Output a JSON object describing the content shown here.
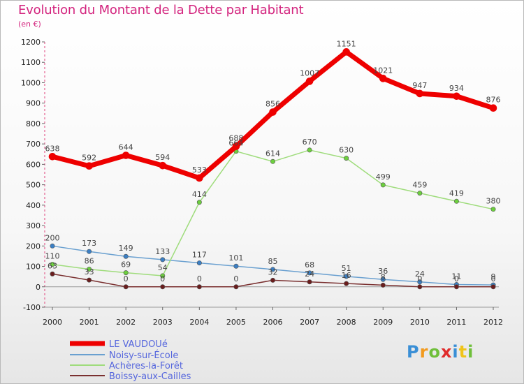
{
  "title": "Evolution du Montant de la Dette par Habitant",
  "unit": "(en €)",
  "logo": {
    "text": "Proxiti",
    "colors": [
      "#3a8fd6",
      "#f29a1e",
      "#6fbf3a",
      "#e02b2b",
      "#3a8fd6",
      "#f0c419",
      "#6fbf3a"
    ]
  },
  "chart_data": {
    "type": "line",
    "x": [
      "2000",
      "2001",
      "2002",
      "2003",
      "2004",
      "2005",
      "2006",
      "2007",
      "2008",
      "2009",
      "2010",
      "2011",
      "2012"
    ],
    "ylim": [
      -100,
      1200
    ],
    "yticks": [
      -100,
      0,
      100,
      200,
      300,
      400,
      500,
      600,
      700,
      800,
      900,
      1000,
      1100,
      1200
    ],
    "grid": false,
    "legend_position": "bottom-left",
    "series": [
      {
        "name": "LE VAUDOUé",
        "color": "#ee0000",
        "marker": "#ee0000",
        "width": 7,
        "values": [
          638,
          592,
          644,
          594,
          533,
          688,
          856,
          1007,
          1151,
          1021,
          947,
          934,
          876
        ],
        "labels": [
          "638",
          "592",
          "644",
          "594",
          "533",
          "688",
          "856",
          "1007",
          "1151",
          "1021",
          "947",
          "934",
          "876"
        ]
      },
      {
        "name": "Noisy-sur-École",
        "color": "#6aa0d0",
        "marker": "#3b7fc4",
        "width": 1.5,
        "values": [
          200,
          173,
          149,
          133,
          117,
          101,
          85,
          68,
          51,
          36,
          24,
          11,
          9
        ],
        "labels": [
          "200",
          "173",
          "149",
          "133",
          "117",
          "101",
          "85",
          "68",
          "51",
          "36",
          "24",
          "11",
          "9"
        ]
      },
      {
        "name": "Achères-la-Forêt",
        "color": "#9fdc7c",
        "marker": "#6ccf3e",
        "width": 1.5,
        "values": [
          110,
          86,
          69,
          54,
          414,
          664,
          614,
          670,
          630,
          499,
          459,
          419,
          380
        ],
        "labels": [
          "110",
          "86",
          "69",
          "54",
          "414",
          "664",
          "614",
          "670",
          "630",
          "499",
          "459",
          "419",
          "380"
        ]
      },
      {
        "name": "Boissy-aux-Cailles",
        "color": "#7a3030",
        "marker": "#6a1d1d",
        "width": 1.5,
        "values": [
          63,
          33,
          0,
          0,
          0,
          0,
          32,
          24,
          16,
          8,
          0,
          0,
          0
        ],
        "labels": [
          "63",
          "33",
          "0",
          "0",
          "0",
          "0",
          "32",
          "24",
          "16",
          "8",
          "0",
          "0",
          "0"
        ]
      }
    ]
  }
}
